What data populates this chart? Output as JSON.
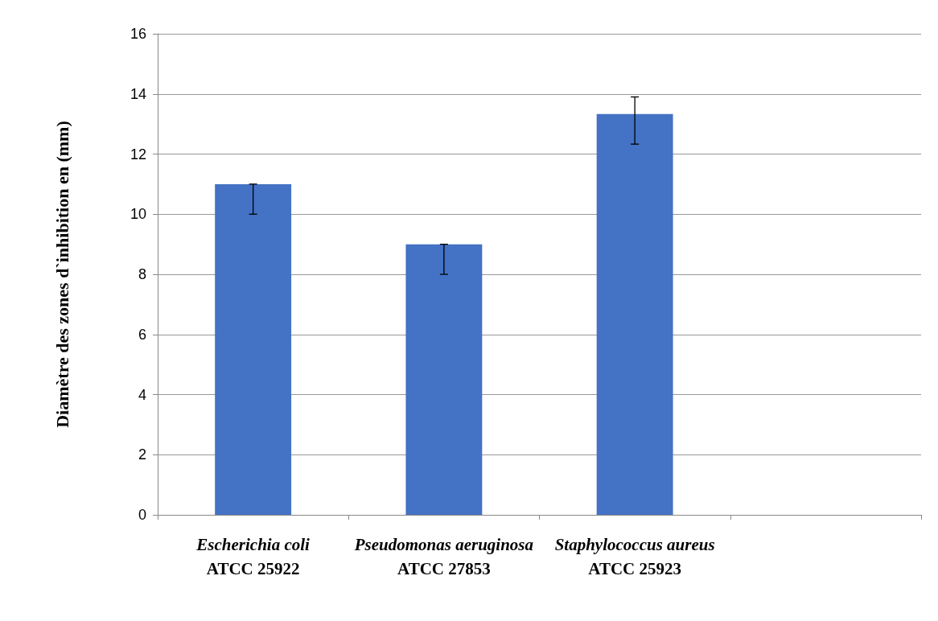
{
  "chart_data": {
    "type": "bar",
    "ylabel": "Diamètre des zones d`inhibition en (mm)",
    "categories": [
      "Escherichia coli\nATCC 25922",
      "Pseudomonas aeruginosa\nATCC 27853",
      "Staphylococcus aureus\nATCC 25923",
      null
    ],
    "values": [
      11,
      9,
      13.33,
      null
    ],
    "errors": [
      [
        10,
        11
      ],
      [
        8,
        9
      ],
      [
        12.33,
        13.9
      ],
      null
    ],
    "color": "#4472c4",
    "ylim": [
      0,
      16
    ],
    "yticks": [
      0,
      2,
      4,
      6,
      8,
      10,
      12,
      14,
      16
    ],
    "grid": "y"
  }
}
